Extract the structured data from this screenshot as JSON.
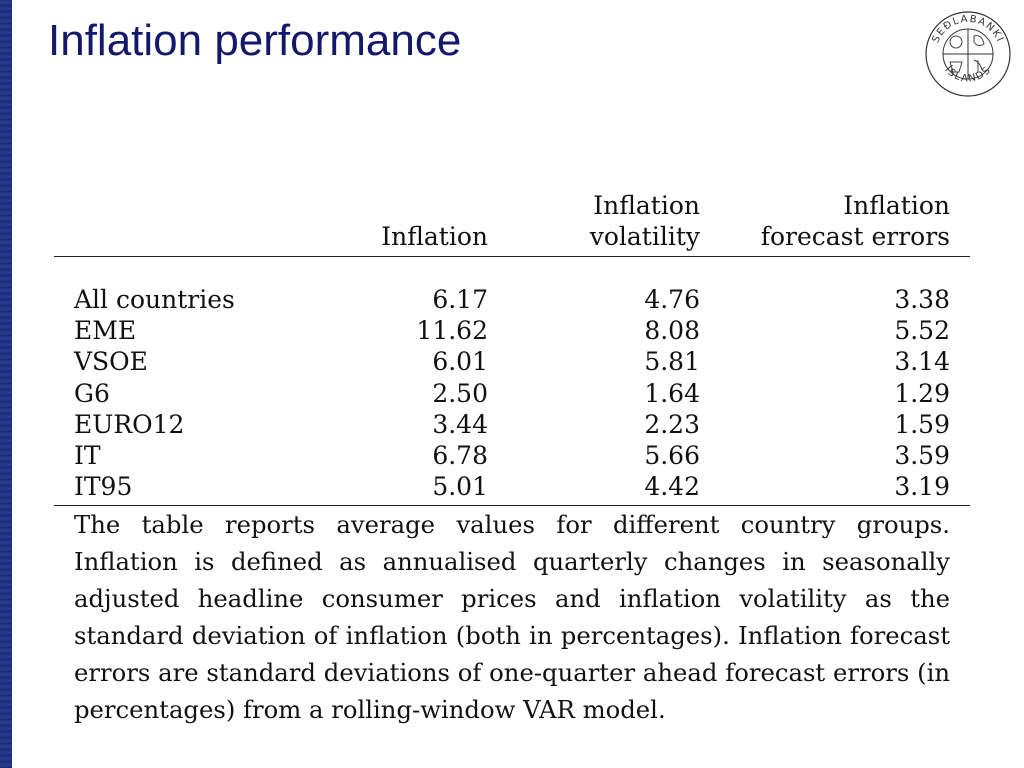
{
  "slide": {
    "title": "Inflation performance"
  },
  "logo": {
    "icon": "central-bank-seal-icon",
    "text_top": "SEÐLABANKI",
    "text_bottom": "ÍSLANDS"
  },
  "table": {
    "headers": {
      "inflation": [
        "",
        "Inflation"
      ],
      "volatility": [
        "Inflation",
        "volatility"
      ],
      "forecast": [
        "Inflation",
        "forecast errors"
      ]
    },
    "rows": [
      {
        "group": "All countries",
        "inflation": "6.17",
        "volatility": "4.76",
        "forecast": "3.38"
      },
      {
        "group": "EME",
        "inflation": "11.62",
        "volatility": "8.08",
        "forecast": "5.52"
      },
      {
        "group": "VSOE",
        "inflation": "6.01",
        "volatility": "5.81",
        "forecast": "3.14"
      },
      {
        "group": "G6",
        "inflation": "2.50",
        "volatility": "1.64",
        "forecast": "1.29"
      },
      {
        "group": "EURO12",
        "inflation": "3.44",
        "volatility": "2.23",
        "forecast": "1.59"
      },
      {
        "group": "IT",
        "inflation": "6.78",
        "volatility": "5.66",
        "forecast": "3.59"
      },
      {
        "group": "IT95",
        "inflation": "5.01",
        "volatility": "4.42",
        "forecast": "3.19"
      }
    ],
    "note": "The table reports average values for different country groups. Inflation is defined as annualised quarterly changes in seasonally adjusted headline consumer prices and inflation volatility as the standard deviation of inflation (both in percentages). Inflation forecast errors are standard deviations of one-quarter ahead forecast errors (in percentages) from a rolling-window VAR model."
  },
  "colors": {
    "title": "#14186b",
    "left_bar": "#1f2f7a"
  }
}
